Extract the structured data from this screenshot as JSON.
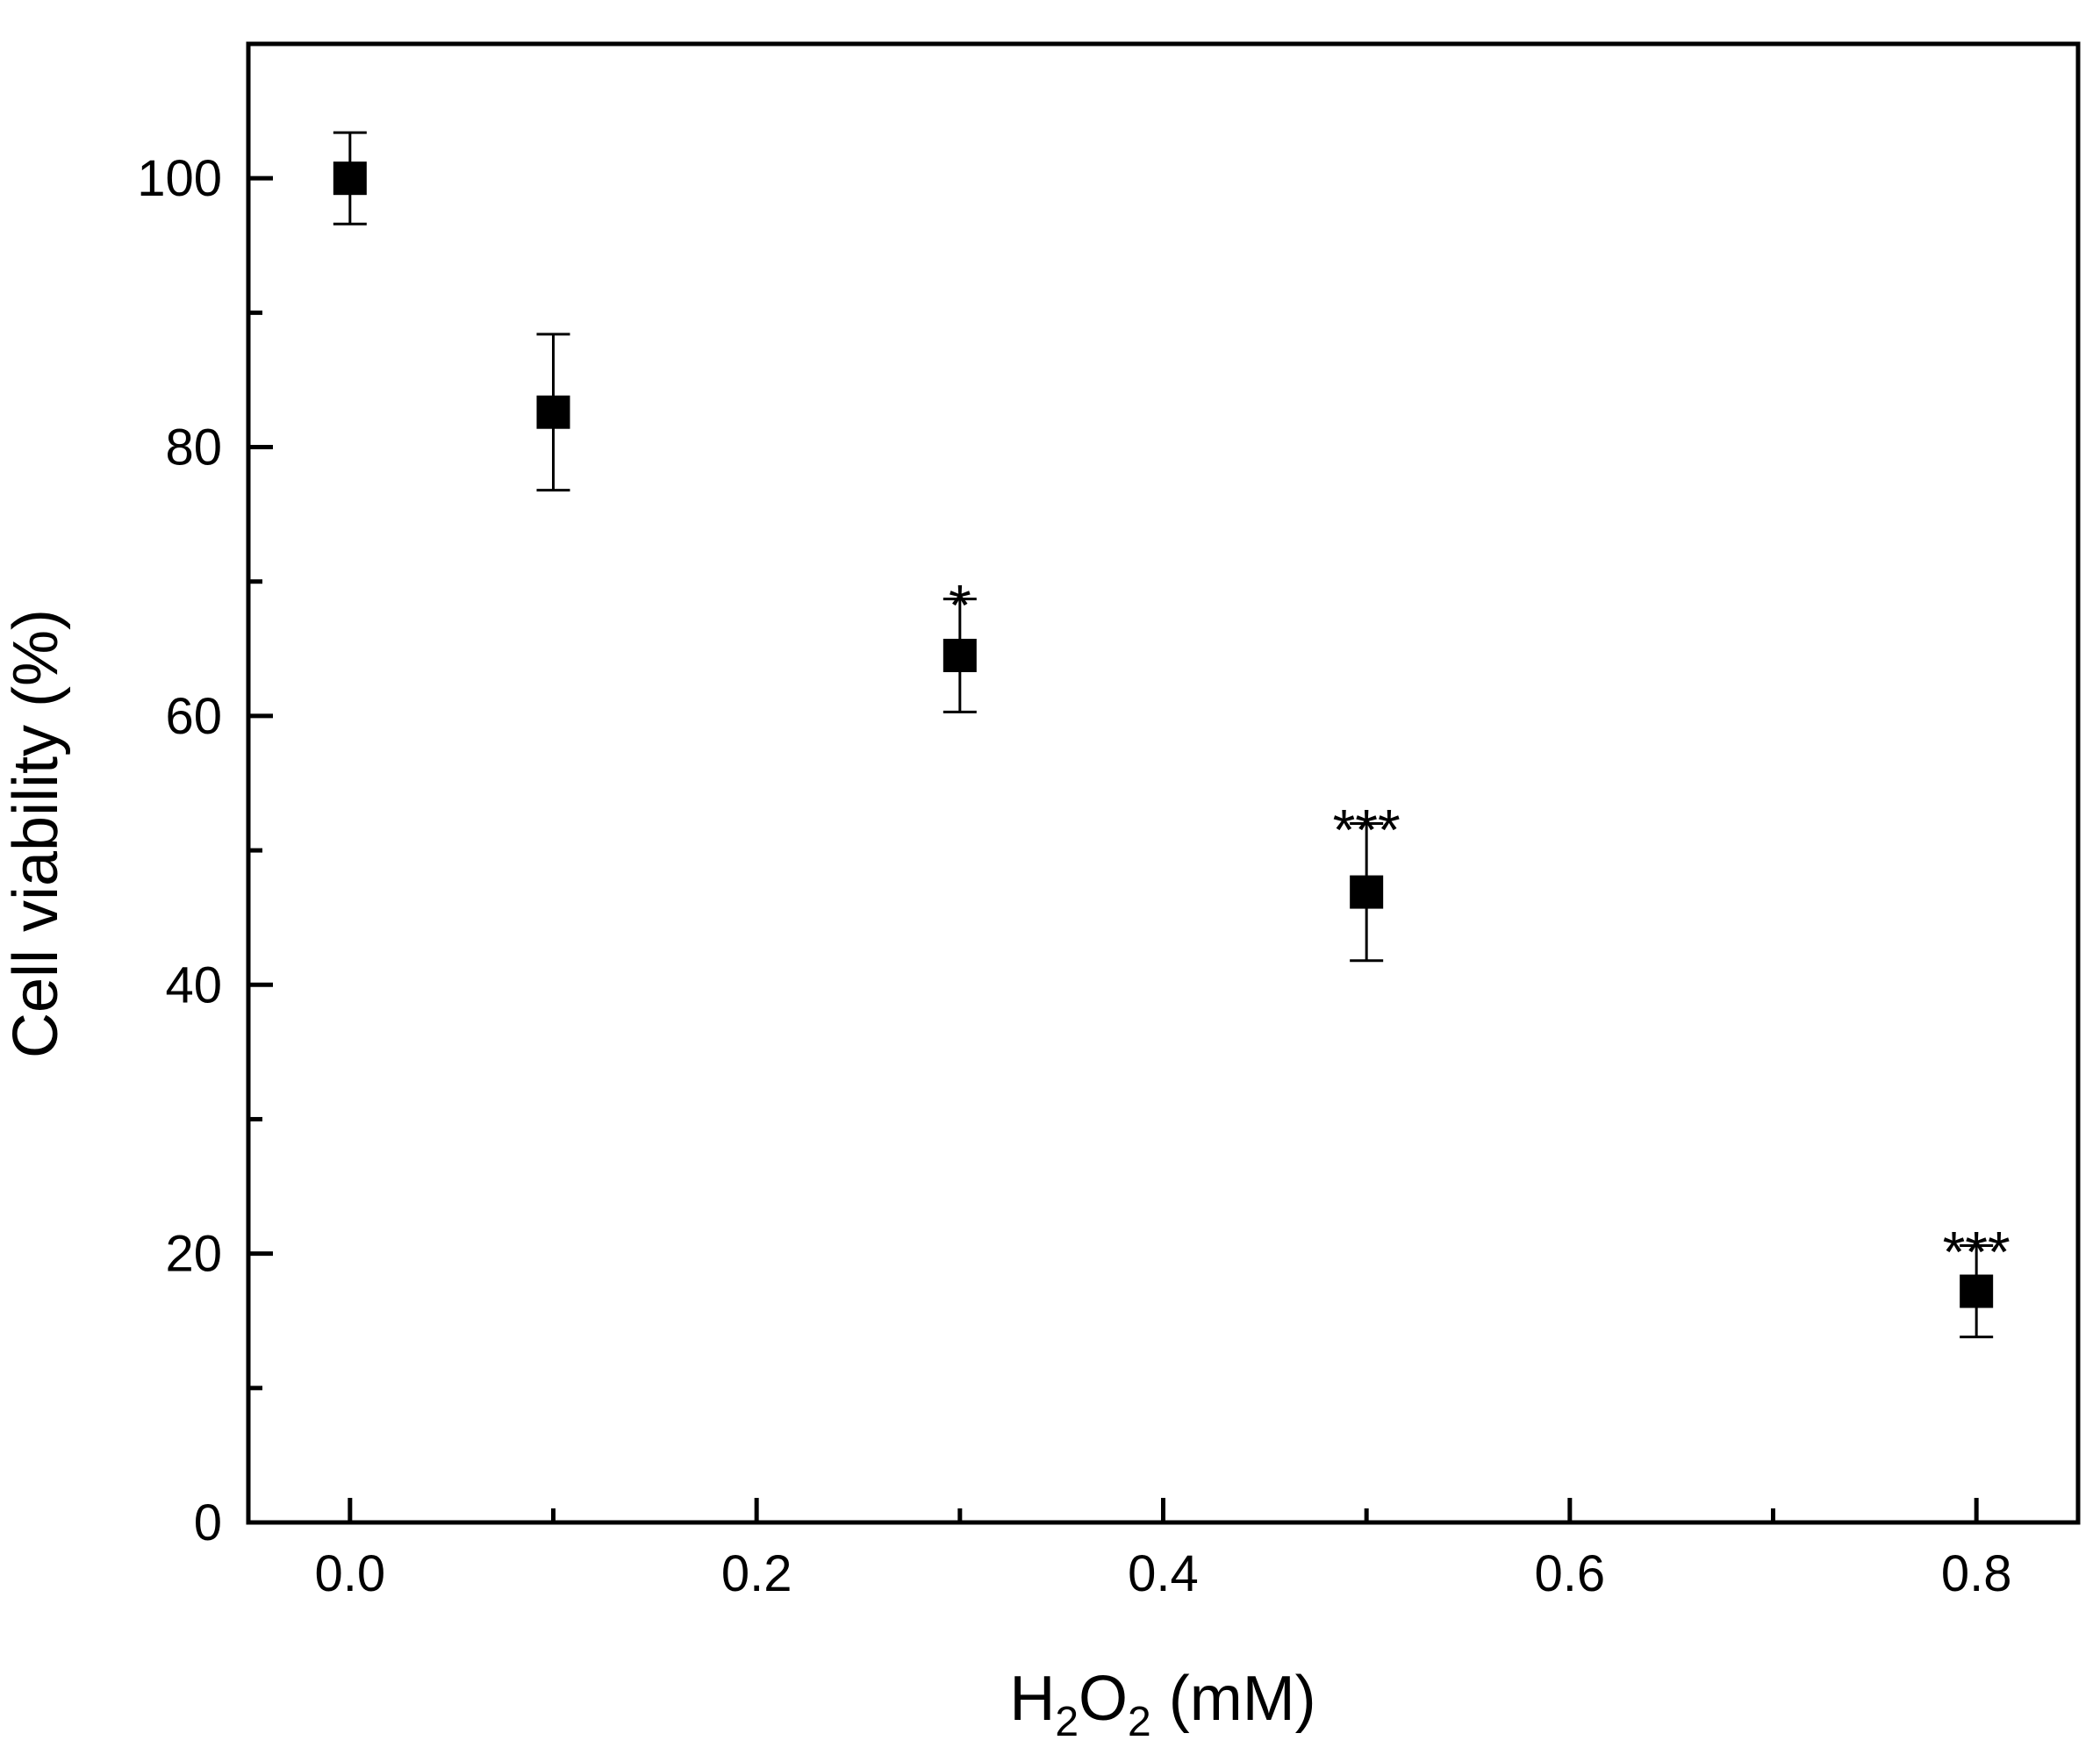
{
  "chart_data": {
    "type": "scatter",
    "title": "",
    "xlabel": {
      "main": "H",
      "sub1": "2",
      "mid": "O",
      "sub2": "2",
      "tail": " (mM)"
    },
    "ylabel": "Cell viability (%)",
    "xlim": [
      -0.05,
      0.85
    ],
    "ylim": [
      0,
      110
    ],
    "x_major_ticks": [
      0.0,
      0.2,
      0.4,
      0.6,
      0.8
    ],
    "x_minor_ticks": [
      0.1,
      0.3,
      0.5,
      0.7
    ],
    "x_tick_labels": [
      "0.0",
      "0.2",
      "0.4",
      "0.6",
      "0.8"
    ],
    "y_major_ticks": [
      0,
      20,
      40,
      60,
      80,
      100
    ],
    "y_minor_ticks": [
      10,
      30,
      50,
      70,
      90
    ],
    "y_tick_labels": [
      "0",
      "20",
      "40",
      "60",
      "80",
      "100"
    ],
    "grid": false,
    "marker": "square",
    "color": "#000000",
    "points": [
      {
        "x": 0.0,
        "y": 100.0,
        "err": 3.4,
        "sig": ""
      },
      {
        "x": 0.1,
        "y": 82.6,
        "err": 5.8,
        "sig": ""
      },
      {
        "x": 0.3,
        "y": 64.5,
        "err": 4.2,
        "sig": "*"
      },
      {
        "x": 0.5,
        "y": 46.9,
        "err": 5.1,
        "sig": "***"
      },
      {
        "x": 0.8,
        "y": 17.2,
        "err": 3.4,
        "sig": "***"
      }
    ]
  }
}
